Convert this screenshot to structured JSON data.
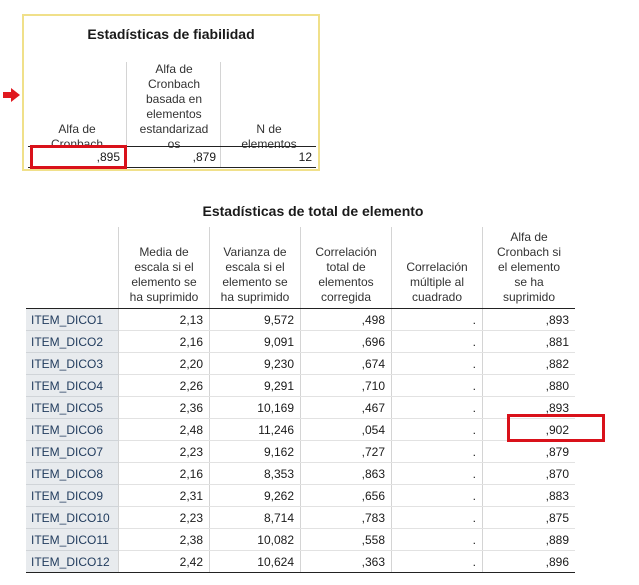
{
  "reliability": {
    "title": "Estadísticas de fiabilidad",
    "headers": [
      "Alfa de\nCronbach",
      "Alfa de\nCronbach\nbasada en\nelementos\nestandarizad\nos",
      "N de\nelementos"
    ],
    "values": [
      ",895",
      ",879",
      "12"
    ]
  },
  "item_total": {
    "title": "Estadísticas de total de elemento",
    "headers": [
      "Media de\nescala si el\nelemento se\nha suprimido",
      "Varianza de\nescala si el\nelemento se\nha suprimido",
      "Correlación\ntotal de\nelementos\ncorregida",
      "Correlación\nmúltiple al\ncuadrado",
      "Alfa de\nCronbach si\nel elemento\nse ha\nsuprimido"
    ],
    "rows": [
      {
        "label": "ITEM_DICO1",
        "values": [
          "2,13",
          "9,572",
          ",498",
          ".",
          ",893"
        ]
      },
      {
        "label": "ITEM_DICO2",
        "values": [
          "2,16",
          "9,091",
          ",696",
          ".",
          ",881"
        ]
      },
      {
        "label": "ITEM_DICO3",
        "values": [
          "2,20",
          "9,230",
          ",674",
          ".",
          ",882"
        ]
      },
      {
        "label": "ITEM_DICO4",
        "values": [
          "2,26",
          "9,291",
          ",710",
          ".",
          ",880"
        ]
      },
      {
        "label": "ITEM_DICO5",
        "values": [
          "2,36",
          "10,169",
          ",467",
          ".",
          ",893"
        ]
      },
      {
        "label": "ITEM_DICO6",
        "values": [
          "2,48",
          "11,246",
          ",054",
          ".",
          ",902"
        ]
      },
      {
        "label": "ITEM_DICO7",
        "values": [
          "2,23",
          "9,162",
          ",727",
          ".",
          ",879"
        ]
      },
      {
        "label": "ITEM_DICO8",
        "values": [
          "2,16",
          "8,353",
          ",863",
          ".",
          ",870"
        ]
      },
      {
        "label": "ITEM_DICO9",
        "values": [
          "2,31",
          "9,262",
          ",656",
          ".",
          ",883"
        ]
      },
      {
        "label": "ITEM_DICO10",
        "values": [
          "2,23",
          "8,714",
          ",783",
          ".",
          ",875"
        ]
      },
      {
        "label": "ITEM_DICO11",
        "values": [
          "2,38",
          "10,082",
          ",558",
          ".",
          ",889"
        ]
      },
      {
        "label": "ITEM_DICO12",
        "values": [
          "2,42",
          "10,624",
          ",363",
          ".",
          ",896"
        ]
      }
    ]
  },
  "colors": {
    "highlight": "#d9111a",
    "selection_border": "#f0e08a",
    "stub_bg": "#e8ebee"
  },
  "icons": {
    "selection_marker": "arrow-right-icon"
  }
}
